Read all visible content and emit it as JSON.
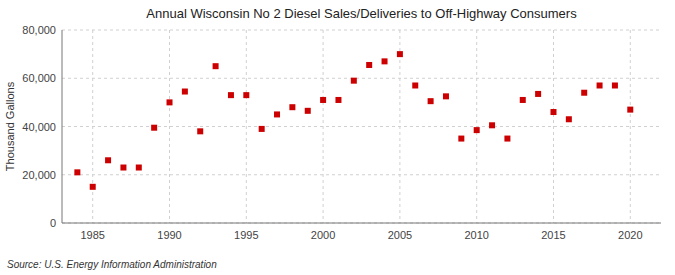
{
  "chart_data": {
    "type": "scatter",
    "title": "Annual Wisconsin No 2 Diesel Sales/Deliveries to Off-Highway Consumers",
    "ylabel": "Thousand Gallons",
    "annotations": [
      "Source: U.S. Energy Information Administration"
    ],
    "x": [
      1984,
      1985,
      1986,
      1987,
      1988,
      1989,
      1990,
      1991,
      1992,
      1993,
      1994,
      1995,
      1996,
      1997,
      1998,
      1999,
      2000,
      2001,
      2002,
      2003,
      2004,
      2005,
      2006,
      2007,
      2008,
      2009,
      2010,
      2011,
      2012,
      2013,
      2014,
      2015,
      2016,
      2017,
      2018,
      2019,
      2020
    ],
    "values": [
      21000,
      15000,
      26000,
      23000,
      23000,
      39500,
      50000,
      54500,
      38000,
      65000,
      53000,
      53000,
      39000,
      45000,
      48000,
      46500,
      51000,
      51000,
      59000,
      65500,
      67000,
      70000,
      57000,
      50500,
      52500,
      35000,
      38500,
      40500,
      35000,
      51000,
      53500,
      46000,
      43000,
      54000,
      57000,
      57000,
      47000
    ],
    "color": "#cc0000",
    "marker": "square",
    "xlim": [
      1983,
      2022
    ],
    "ylim": [
      0,
      80000
    ],
    "xticks": [
      1985,
      1990,
      1995,
      2000,
      2005,
      2010,
      2015,
      2020
    ],
    "yticks": [
      0,
      {
        "value": 20000,
        "label": "20,000"
      },
      {
        "value": 40000,
        "label": "40,000"
      },
      {
        "value": 60000,
        "label": "60,000"
      },
      {
        "value": 80000,
        "label": "80,000"
      }
    ],
    "grid": true
  }
}
